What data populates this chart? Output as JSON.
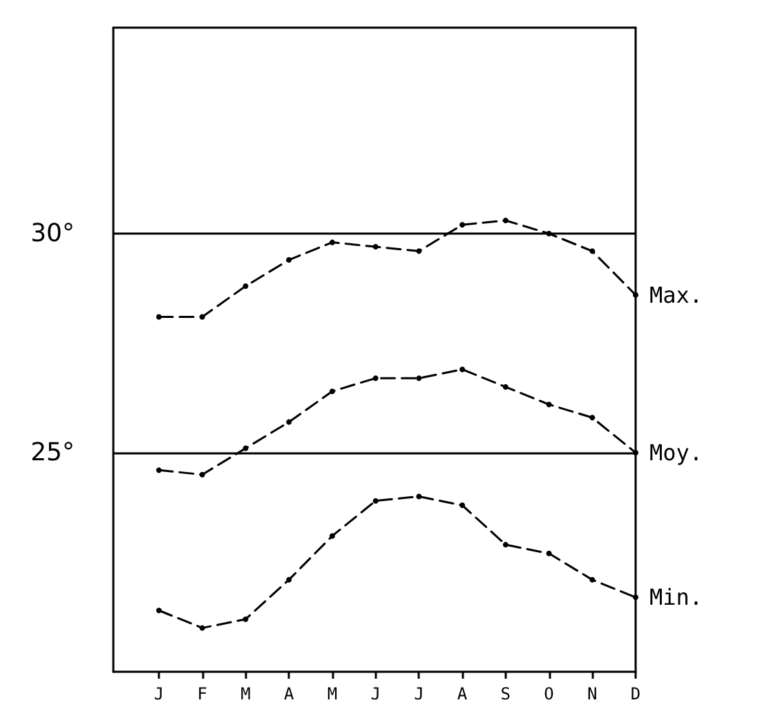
{
  "chart_data": {
    "type": "line",
    "categories": [
      "J",
      "F",
      "M",
      "A",
      "M",
      "J",
      "J",
      "A",
      "S",
      "O",
      "N",
      "D"
    ],
    "series": [
      {
        "name": "Max.",
        "color": "#000000",
        "values": [
          28.1,
          28.1,
          28.8,
          29.4,
          29.8,
          29.7,
          29.6,
          30.2,
          30.3,
          30.0,
          29.6,
          28.6
        ]
      },
      {
        "name": "Moy.",
        "color": "#000000",
        "values": [
          24.6,
          24.5,
          25.1,
          25.7,
          26.4,
          26.7,
          26.7,
          26.9,
          26.5,
          26.1,
          25.8,
          25.0
        ]
      },
      {
        "name": "Min.",
        "color": "#000000",
        "values": [
          21.4,
          21.0,
          21.2,
          22.1,
          23.1,
          23.9,
          24.0,
          23.8,
          22.9,
          22.7,
          22.1,
          21.7
        ]
      }
    ],
    "ylim": [
      20,
      34.7
    ],
    "yticks": [
      {
        "value": 25,
        "label": "25°"
      },
      {
        "value": 30,
        "label": "30°"
      }
    ],
    "grid": "y",
    "legend": false,
    "marker": "circle",
    "line_style": "dashed"
  }
}
